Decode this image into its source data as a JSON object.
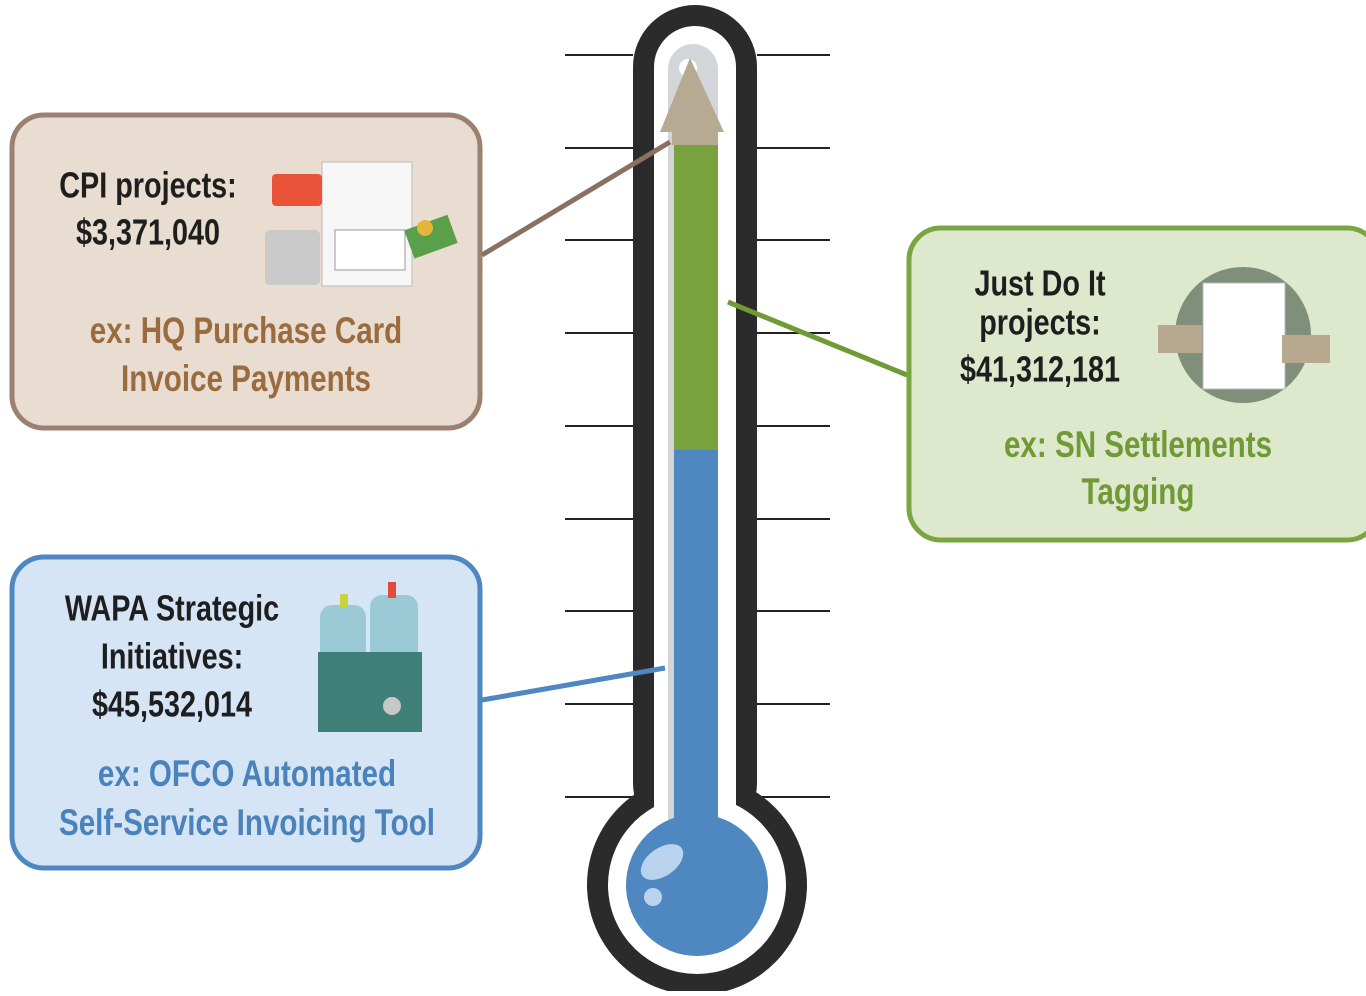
{
  "boxes": [
    {
      "title": [
        "CPI projects:",
        "$3,371,040"
      ],
      "example": [
        "ex: HQ Purchase Card",
        "Invoice Payments"
      ]
    },
    {
      "title": [
        "Just Do It",
        "projects:",
        "$41,312,181"
      ],
      "example": [
        "ex: SN Settlements",
        "Tagging"
      ]
    },
    {
      "title": [
        "WAPA Strategic",
        "Initiatives:",
        "$45,532,014"
      ],
      "example": [
        "ex: OFCO Automated",
        "Self-Service Invoicing Tool"
      ]
    }
  ]
}
